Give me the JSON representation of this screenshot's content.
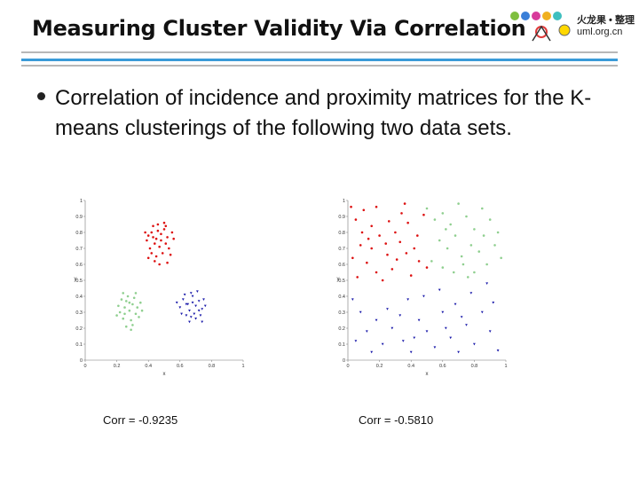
{
  "slide": {
    "title": "Measuring Cluster Validity Via Correlation",
    "bullet": "Correlation of incidence and proximity matrices for the K-means clusterings of the following two data sets."
  },
  "logo": {
    "line1": "火龙果 • 整理",
    "line2": "uml.org.cn"
  },
  "colors": {
    "rule_blue": "#3a9bd8",
    "rule_gray": "#b8b8b8",
    "red": "#dd1111",
    "green": "#8fcf8f",
    "blue": "#1a1aaa"
  },
  "chart_data": [
    {
      "type": "scatter",
      "xlabel": "x",
      "ylabel": "y",
      "xlim": [
        0,
        1
      ],
      "ylim": [
        0,
        1
      ],
      "xticks": [
        "0",
        "0.2",
        "0.4",
        "0.6",
        "0.8",
        "1"
      ],
      "yticks": [
        "0",
        "0.1",
        "0.2",
        "0.3",
        "0.4",
        "0.5",
        "0.6",
        "0.7",
        "0.8",
        "0.9",
        "1"
      ],
      "caption": "Corr = -0.9235",
      "series": [
        {
          "name": "cluster-red",
          "color": "#dd1111",
          "marker": "dot",
          "points": [
            [
              0.4,
              0.78
            ],
            [
              0.42,
              0.8
            ],
            [
              0.45,
              0.76
            ],
            [
              0.48,
              0.79
            ],
            [
              0.5,
              0.82
            ],
            [
              0.52,
              0.77
            ],
            [
              0.44,
              0.73
            ],
            [
              0.47,
              0.71
            ],
            [
              0.41,
              0.7
            ],
            [
              0.51,
              0.73
            ],
            [
              0.55,
              0.8
            ],
            [
              0.43,
              0.84
            ],
            [
              0.46,
              0.85
            ],
            [
              0.39,
              0.75
            ],
            [
              0.49,
              0.67
            ],
            [
              0.45,
              0.65
            ],
            [
              0.42,
              0.67
            ],
            [
              0.53,
              0.7
            ],
            [
              0.48,
              0.75
            ],
            [
              0.38,
              0.8
            ],
            [
              0.5,
              0.86
            ],
            [
              0.56,
              0.76
            ],
            [
              0.44,
              0.62
            ],
            [
              0.47,
              0.6
            ],
            [
              0.4,
              0.64
            ],
            [
              0.54,
              0.66
            ],
            [
              0.52,
              0.61
            ],
            [
              0.43,
              0.77
            ],
            [
              0.46,
              0.81
            ],
            [
              0.51,
              0.84
            ]
          ]
        },
        {
          "name": "cluster-green",
          "color": "#8fcf8f",
          "marker": "dot",
          "points": [
            [
              0.22,
              0.3
            ],
            [
              0.25,
              0.33
            ],
            [
              0.28,
              0.31
            ],
            [
              0.3,
              0.35
            ],
            [
              0.26,
              0.37
            ],
            [
              0.32,
              0.29
            ],
            [
              0.24,
              0.26
            ],
            [
              0.29,
              0.25
            ],
            [
              0.33,
              0.33
            ],
            [
              0.21,
              0.34
            ],
            [
              0.27,
              0.4
            ],
            [
              0.31,
              0.39
            ],
            [
              0.35,
              0.36
            ],
            [
              0.23,
              0.38
            ],
            [
              0.3,
              0.22
            ],
            [
              0.26,
              0.21
            ],
            [
              0.34,
              0.27
            ],
            [
              0.28,
              0.36
            ],
            [
              0.2,
              0.28
            ],
            [
              0.32,
              0.42
            ],
            [
              0.25,
              0.29
            ],
            [
              0.36,
              0.31
            ],
            [
              0.29,
              0.19
            ],
            [
              0.24,
              0.42
            ]
          ]
        },
        {
          "name": "cluster-blue",
          "color": "#1a1aaa",
          "marker": "triangle",
          "points": [
            [
              0.62,
              0.38
            ],
            [
              0.65,
              0.35
            ],
            [
              0.68,
              0.4
            ],
            [
              0.7,
              0.34
            ],
            [
              0.66,
              0.31
            ],
            [
              0.72,
              0.37
            ],
            [
              0.64,
              0.28
            ],
            [
              0.69,
              0.29
            ],
            [
              0.74,
              0.32
            ],
            [
              0.6,
              0.33
            ],
            [
              0.67,
              0.42
            ],
            [
              0.71,
              0.43
            ],
            [
              0.75,
              0.38
            ],
            [
              0.63,
              0.41
            ],
            [
              0.7,
              0.26
            ],
            [
              0.66,
              0.24
            ],
            [
              0.73,
              0.28
            ],
            [
              0.76,
              0.34
            ],
            [
              0.61,
              0.29
            ],
            [
              0.68,
              0.36
            ],
            [
              0.74,
              0.24
            ],
            [
              0.64,
              0.35
            ],
            [
              0.58,
              0.36
            ],
            [
              0.72,
              0.31
            ],
            [
              0.67,
              0.27
            ]
          ]
        }
      ]
    },
    {
      "type": "scatter",
      "xlabel": "x",
      "ylabel": "y",
      "xlim": [
        0,
        1
      ],
      "ylim": [
        0,
        1
      ],
      "xticks": [
        "0",
        "0.2",
        "0.4",
        "0.6",
        "0.8",
        "1"
      ],
      "yticks": [
        "0",
        "0.1",
        "0.2",
        "0.3",
        "0.4",
        "0.5",
        "0.6",
        "0.7",
        "0.8",
        "0.9",
        "1"
      ],
      "caption": "Corr = -0.5810",
      "series": [
        {
          "name": "cluster-red",
          "color": "#dd1111",
          "marker": "dot",
          "points": [
            [
              0.05,
              0.88
            ],
            [
              0.1,
              0.94
            ],
            [
              0.15,
              0.84
            ],
            [
              0.2,
              0.78
            ],
            [
              0.08,
              0.72
            ],
            [
              0.03,
              0.64
            ],
            [
              0.12,
              0.61
            ],
            [
              0.18,
              0.55
            ],
            [
              0.25,
              0.66
            ],
            [
              0.3,
              0.8
            ],
            [
              0.34,
              0.92
            ],
            [
              0.38,
              0.86
            ],
            [
              0.42,
              0.7
            ],
            [
              0.45,
              0.62
            ],
            [
              0.28,
              0.57
            ],
            [
              0.22,
              0.5
            ],
            [
              0.15,
              0.7
            ],
            [
              0.06,
              0.52
            ],
            [
              0.33,
              0.74
            ],
            [
              0.4,
              0.53
            ],
            [
              0.36,
              0.98
            ],
            [
              0.48,
              0.91
            ],
            [
              0.44,
              0.78
            ],
            [
              0.26,
              0.87
            ],
            [
              0.18,
              0.96
            ],
            [
              0.5,
              0.58
            ],
            [
              0.31,
              0.63
            ],
            [
              0.09,
              0.8
            ],
            [
              0.02,
              0.96
            ],
            [
              0.24,
              0.73
            ],
            [
              0.37,
              0.67
            ],
            [
              0.13,
              0.76
            ]
          ]
        },
        {
          "name": "cluster-green",
          "color": "#8fcf8f",
          "marker": "dot",
          "points": [
            [
              0.5,
              0.95
            ],
            [
              0.55,
              0.88
            ],
            [
              0.6,
              0.92
            ],
            [
              0.65,
              0.85
            ],
            [
              0.7,
              0.98
            ],
            [
              0.75,
              0.9
            ],
            [
              0.8,
              0.82
            ],
            [
              0.85,
              0.95
            ],
            [
              0.9,
              0.88
            ],
            [
              0.95,
              0.8
            ],
            [
              0.58,
              0.75
            ],
            [
              0.63,
              0.7
            ],
            [
              0.68,
              0.78
            ],
            [
              0.72,
              0.65
            ],
            [
              0.78,
              0.72
            ],
            [
              0.83,
              0.68
            ],
            [
              0.88,
              0.6
            ],
            [
              0.93,
              0.72
            ],
            [
              0.53,
              0.62
            ],
            [
              0.6,
              0.58
            ],
            [
              0.67,
              0.55
            ],
            [
              0.73,
              0.6
            ],
            [
              0.8,
              0.55
            ],
            [
              0.86,
              0.78
            ],
            [
              0.97,
              0.64
            ],
            [
              0.62,
              0.82
            ],
            [
              0.76,
              0.52
            ]
          ]
        },
        {
          "name": "cluster-blue",
          "color": "#1a1aaa",
          "marker": "triangle",
          "points": [
            [
              0.03,
              0.38
            ],
            [
              0.08,
              0.3
            ],
            [
              0.12,
              0.18
            ],
            [
              0.05,
              0.12
            ],
            [
              0.15,
              0.05
            ],
            [
              0.22,
              0.1
            ],
            [
              0.28,
              0.2
            ],
            [
              0.35,
              0.12
            ],
            [
              0.4,
              0.05
            ],
            [
              0.45,
              0.25
            ],
            [
              0.5,
              0.18
            ],
            [
              0.55,
              0.08
            ],
            [
              0.6,
              0.3
            ],
            [
              0.65,
              0.14
            ],
            [
              0.7,
              0.05
            ],
            [
              0.75,
              0.22
            ],
            [
              0.8,
              0.1
            ],
            [
              0.85,
              0.3
            ],
            [
              0.9,
              0.18
            ],
            [
              0.95,
              0.06
            ],
            [
              0.25,
              0.32
            ],
            [
              0.38,
              0.38
            ],
            [
              0.48,
              0.4
            ],
            [
              0.58,
              0.44
            ],
            [
              0.68,
              0.35
            ],
            [
              0.78,
              0.42
            ],
            [
              0.88,
              0.48
            ],
            [
              0.18,
              0.25
            ],
            [
              0.42,
              0.14
            ],
            [
              0.62,
              0.2
            ],
            [
              0.72,
              0.27
            ],
            [
              0.92,
              0.36
            ],
            [
              0.33,
              0.28
            ]
          ]
        }
      ]
    }
  ]
}
